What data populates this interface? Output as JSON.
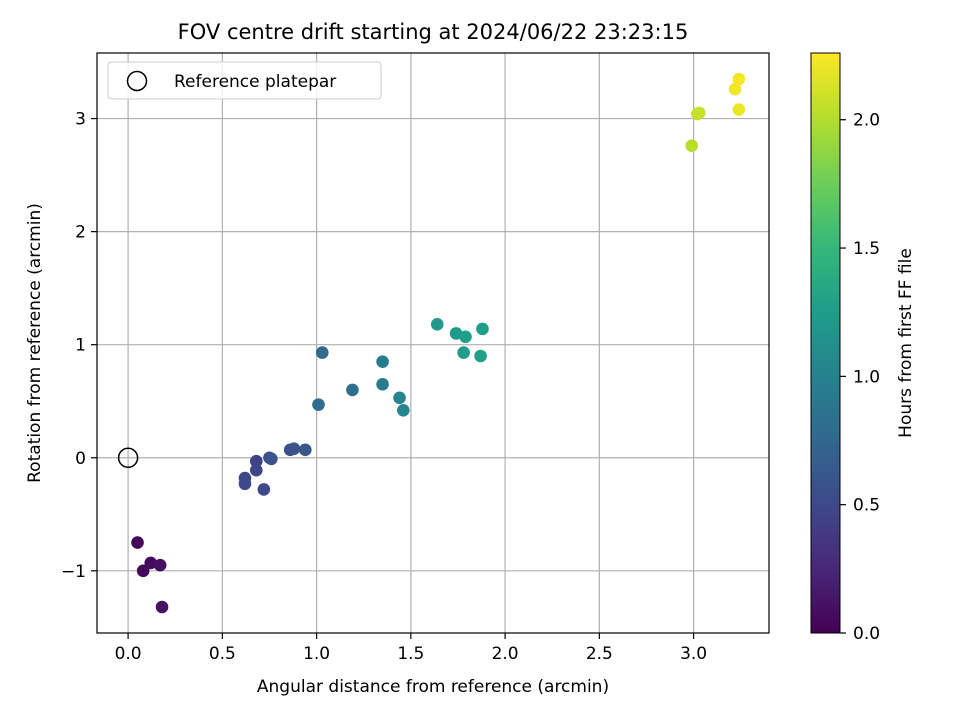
{
  "chart_data": {
    "type": "scatter",
    "title": "FOV centre drift starting at 2024/06/22 23:23:15",
    "xlabel": "Angular distance from reference (arcmin)",
    "ylabel": "Rotation from reference (arcmin)",
    "xlim": [
      -0.165,
      3.4
    ],
    "ylim": [
      -1.55,
      3.58
    ],
    "xticks": [
      0.0,
      0.5,
      1.0,
      1.5,
      2.0,
      2.5,
      3.0
    ],
    "yticks": [
      -1,
      0,
      1,
      2,
      3
    ],
    "xtick_labels": [
      "0.0",
      "0.5",
      "1.0",
      "1.5",
      "2.0",
      "2.5",
      "3.0"
    ],
    "ytick_labels": [
      "−1",
      "0",
      "1",
      "2",
      "3"
    ],
    "grid": true,
    "legend": {
      "placement": "top-left",
      "entries": [
        "Reference platepar"
      ]
    },
    "reference_point": {
      "x": 0.0,
      "y": 0.0,
      "label": "Reference platepar"
    },
    "colorbar": {
      "label": "Hours from first FF file",
      "range": [
        0.0,
        2.26
      ],
      "ticks": [
        0.0,
        0.5,
        1.0,
        1.5,
        2.0
      ],
      "tick_labels": [
        "0.0",
        "0.5",
        "1.0",
        "1.5",
        "2.0"
      ],
      "colormap": "viridis",
      "stops": [
        "#440154",
        "#482878",
        "#3e4989",
        "#31688e",
        "#26828e",
        "#1f9e89",
        "#35b779",
        "#6ece58",
        "#b5de2b",
        "#fde725"
      ]
    },
    "points": [
      {
        "x": 0.05,
        "y": -0.75,
        "c": 0.02
      },
      {
        "x": 0.08,
        "y": -1.0,
        "c": 0.05
      },
      {
        "x": 0.12,
        "y": -0.93,
        "c": 0.07
      },
      {
        "x": 0.17,
        "y": -0.95,
        "c": 0.09
      },
      {
        "x": 0.18,
        "y": -1.32,
        "c": 0.11
      },
      {
        "x": 0.62,
        "y": -0.18,
        "c": 0.48
      },
      {
        "x": 0.62,
        "y": -0.23,
        "c": 0.5
      },
      {
        "x": 0.68,
        "y": -0.03,
        "c": 0.45
      },
      {
        "x": 0.68,
        "y": -0.11,
        "c": 0.47
      },
      {
        "x": 0.72,
        "y": -0.28,
        "c": 0.49
      },
      {
        "x": 0.75,
        "y": 0.0,
        "c": 0.57
      },
      {
        "x": 0.76,
        "y": -0.01,
        "c": 0.58
      },
      {
        "x": 0.86,
        "y": 0.07,
        "c": 0.56
      },
      {
        "x": 0.88,
        "y": 0.08,
        "c": 0.58
      },
      {
        "x": 0.94,
        "y": 0.07,
        "c": 0.62
      },
      {
        "x": 1.01,
        "y": 0.47,
        "c": 0.8
      },
      {
        "x": 1.03,
        "y": 0.93,
        "c": 0.78
      },
      {
        "x": 1.19,
        "y": 0.6,
        "c": 0.82
      },
      {
        "x": 1.35,
        "y": 0.85,
        "c": 0.95
      },
      {
        "x": 1.35,
        "y": 0.65,
        "c": 0.93
      },
      {
        "x": 1.44,
        "y": 0.53,
        "c": 1.02
      },
      {
        "x": 1.46,
        "y": 0.42,
        "c": 1.05
      },
      {
        "x": 1.64,
        "y": 1.18,
        "c": 1.22
      },
      {
        "x": 1.74,
        "y": 1.1,
        "c": 1.24
      },
      {
        "x": 1.79,
        "y": 1.07,
        "c": 1.26
      },
      {
        "x": 1.78,
        "y": 0.93,
        "c": 1.25
      },
      {
        "x": 1.87,
        "y": 0.9,
        "c": 1.28
      },
      {
        "x": 1.88,
        "y": 1.14,
        "c": 1.27
      },
      {
        "x": 2.99,
        "y": 2.76,
        "c": 2.02
      },
      {
        "x": 3.02,
        "y": 3.04,
        "c": 2.05
      },
      {
        "x": 3.03,
        "y": 3.05,
        "c": 2.07
      },
      {
        "x": 3.22,
        "y": 3.26,
        "c": 2.22
      },
      {
        "x": 3.24,
        "y": 3.35,
        "c": 2.24
      },
      {
        "x": 3.24,
        "y": 3.08,
        "c": 2.2
      }
    ]
  }
}
